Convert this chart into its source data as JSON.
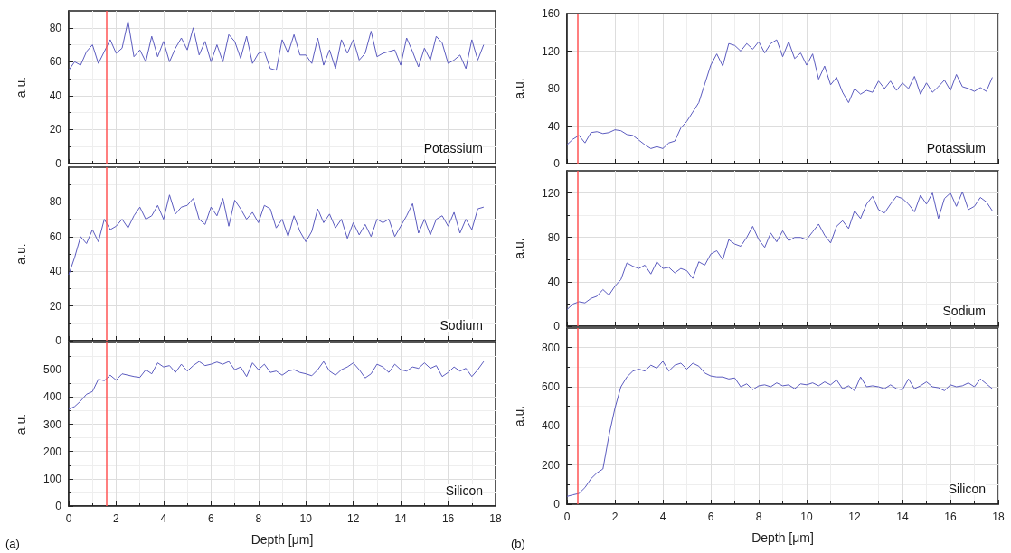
{
  "chart_data": [
    {
      "type": "line",
      "ylabel": "a.u.",
      "annotations": [
        "Potassium"
      ],
      "xlim": [
        0,
        18
      ],
      "xticks": [
        0,
        2,
        4,
        6,
        8,
        10,
        12,
        14,
        16,
        18
      ],
      "ylim": [
        0,
        90
      ],
      "yticks": [
        0,
        20,
        40,
        60,
        80
      ],
      "grid": true,
      "tick_labels": "y",
      "ref_lines": [
        {
          "axis": "x",
          "value": 1.6,
          "color": "#ff5555"
        }
      ],
      "x": [
        0,
        0.25,
        0.5,
        0.75,
        1,
        1.25,
        1.5,
        1.75,
        2,
        2.25,
        2.5,
        2.75,
        3,
        3.25,
        3.5,
        3.75,
        4,
        4.25,
        4.5,
        4.75,
        5,
        5.25,
        5.5,
        5.75,
        6,
        6.25,
        6.5,
        6.75,
        7,
        7.25,
        7.5,
        7.75,
        8,
        8.25,
        8.5,
        8.75,
        9,
        9.25,
        9.5,
        9.75,
        10,
        10.25,
        10.5,
        10.75,
        11,
        11.25,
        11.5,
        11.75,
        12,
        12.25,
        12.5,
        12.75,
        13,
        13.25,
        13.5,
        13.75,
        14,
        14.25,
        14.5,
        14.75,
        15,
        15.25,
        15.5,
        15.75,
        16,
        16.25,
        16.5,
        16.75,
        17,
        17.25,
        17.5
      ],
      "series": [
        {
          "color": "#5b5bbf",
          "values": [
            55,
            60,
            58,
            66,
            70,
            59,
            66,
            73,
            65,
            68,
            84,
            63,
            67,
            60,
            75,
            63,
            72,
            60,
            68,
            74,
            67,
            80,
            64,
            72,
            60,
            70,
            60,
            76,
            72,
            62,
            75,
            59,
            65,
            66,
            56,
            55,
            73,
            65,
            76,
            64,
            64,
            59,
            74,
            58,
            67,
            56,
            73,
            65,
            73,
            61,
            65,
            78,
            63,
            65,
            66,
            67,
            58,
            74,
            66,
            57,
            68,
            61,
            75,
            71,
            59,
            61,
            64,
            56,
            73,
            61,
            70
          ]
        }
      ]
    },
    {
      "type": "line",
      "ylabel": "a.u.",
      "annotations": [
        "Sodium"
      ],
      "xlim": [
        0,
        18
      ],
      "xticks": [
        0,
        2,
        4,
        6,
        8,
        10,
        12,
        14,
        16,
        18
      ],
      "ylim": [
        0,
        100
      ],
      "yticks": [
        0,
        20,
        40,
        60,
        80
      ],
      "grid": true,
      "tick_labels": "y",
      "ref_lines": [
        {
          "axis": "x",
          "value": 1.6,
          "color": "#ff5555"
        }
      ],
      "x": [
        0,
        0.25,
        0.5,
        0.75,
        1,
        1.25,
        1.5,
        1.75,
        2,
        2.25,
        2.5,
        2.75,
        3,
        3.25,
        3.5,
        3.75,
        4,
        4.25,
        4.5,
        4.75,
        5,
        5.25,
        5.5,
        5.75,
        6,
        6.25,
        6.5,
        6.75,
        7,
        7.25,
        7.5,
        7.75,
        8,
        8.25,
        8.5,
        8.75,
        9,
        9.25,
        9.5,
        9.75,
        10,
        10.25,
        10.5,
        10.75,
        11,
        11.25,
        11.5,
        11.75,
        12,
        12.25,
        12.5,
        12.75,
        13,
        13.25,
        13.5,
        13.75,
        14,
        14.25,
        14.5,
        14.75,
        15,
        15.25,
        15.5,
        15.75,
        16,
        16.25,
        16.5,
        16.75,
        17,
        17.25,
        17.5
      ],
      "series": [
        {
          "color": "#5b5bbf",
          "values": [
            38,
            48,
            60,
            56,
            64,
            57,
            70,
            64,
            66,
            70,
            65,
            72,
            77,
            70,
            72,
            78,
            70,
            84,
            73,
            77,
            78,
            82,
            70,
            67,
            77,
            72,
            82,
            66,
            81,
            76,
            70,
            74,
            68,
            78,
            76,
            65,
            70,
            60,
            72,
            63,
            57,
            63,
            76,
            68,
            73,
            65,
            70,
            59,
            68,
            61,
            67,
            60,
            70,
            68,
            70,
            60,
            66,
            72,
            79,
            62,
            70,
            61,
            70,
            72,
            66,
            74,
            62,
            70,
            64,
            76,
            77
          ]
        }
      ]
    },
    {
      "type": "line",
      "ylabel": "a.u.",
      "xlabel": "Depth [μm]",
      "annotations": [
        "Silicon",
        "(a)"
      ],
      "xlim": [
        0,
        18
      ],
      "xticks": [
        0,
        2,
        4,
        6,
        8,
        10,
        12,
        14,
        16,
        18
      ],
      "ylim": [
        0,
        600
      ],
      "yticks": [
        0,
        100,
        200,
        300,
        400,
        500
      ],
      "grid": true,
      "ref_lines": [
        {
          "axis": "x",
          "value": 1.6,
          "color": "#ff5555"
        }
      ],
      "x": [
        0,
        0.25,
        0.5,
        0.75,
        1,
        1.25,
        1.5,
        1.75,
        2,
        2.25,
        2.5,
        2.75,
        3,
        3.25,
        3.5,
        3.75,
        4,
        4.25,
        4.5,
        4.75,
        5,
        5.25,
        5.5,
        5.75,
        6,
        6.25,
        6.5,
        6.75,
        7,
        7.25,
        7.5,
        7.75,
        8,
        8.25,
        8.5,
        8.75,
        9,
        9.25,
        9.5,
        9.75,
        10,
        10.25,
        10.5,
        10.75,
        11,
        11.25,
        11.5,
        11.75,
        12,
        12.25,
        12.5,
        12.75,
        13,
        13.25,
        13.5,
        13.75,
        14,
        14.25,
        14.5,
        14.75,
        15,
        15.25,
        15.5,
        15.75,
        16,
        16.25,
        16.5,
        16.75,
        17,
        17.25,
        17.5
      ],
      "series": [
        {
          "color": "#5b5bbf",
          "values": [
            355,
            365,
            385,
            410,
            420,
            465,
            460,
            480,
            462,
            485,
            480,
            475,
            472,
            500,
            485,
            525,
            510,
            515,
            490,
            520,
            495,
            515,
            530,
            515,
            520,
            528,
            520,
            530,
            500,
            510,
            475,
            525,
            500,
            520,
            490,
            495,
            480,
            495,
            500,
            490,
            485,
            478,
            500,
            530,
            495,
            480,
            500,
            510,
            525,
            500,
            470,
            485,
            520,
            510,
            490,
            520,
            500,
            495,
            510,
            505,
            525,
            505,
            515,
            475,
            490,
            510,
            495,
            505,
            475,
            500,
            530
          ]
        }
      ]
    },
    {
      "type": "line",
      "ylabel": "a.u.",
      "annotations": [
        "Potassium"
      ],
      "xlim": [
        0,
        18
      ],
      "xticks": [
        0,
        2,
        4,
        6,
        8,
        10,
        12,
        14,
        16,
        18
      ],
      "ylim": [
        0,
        160
      ],
      "yticks": [
        0,
        40,
        80,
        120,
        160
      ],
      "grid": true,
      "tick_labels": "y",
      "ref_lines": [
        {
          "axis": "x",
          "value": 0.45,
          "color": "#ff5555"
        }
      ],
      "x": [
        0,
        0.25,
        0.5,
        0.75,
        1,
        1.25,
        1.5,
        1.75,
        2,
        2.25,
        2.5,
        2.75,
        3,
        3.25,
        3.5,
        3.75,
        4,
        4.25,
        4.5,
        4.75,
        5,
        5.25,
        5.5,
        5.75,
        6,
        6.25,
        6.5,
        6.75,
        7,
        7.25,
        7.5,
        7.75,
        8,
        8.25,
        8.5,
        8.75,
        9,
        9.25,
        9.5,
        9.75,
        10,
        10.25,
        10.5,
        10.75,
        11,
        11.25,
        11.5,
        11.75,
        12,
        12.25,
        12.5,
        12.75,
        13,
        13.25,
        13.5,
        13.75,
        14,
        14.25,
        14.5,
        14.75,
        15,
        15.25,
        15.5,
        15.75,
        16,
        16.25,
        16.5,
        16.75,
        17,
        17.25,
        17.5,
        17.75
      ],
      "series": [
        {
          "color": "#5b5bbf",
          "values": [
            20,
            26,
            30,
            22,
            33,
            34,
            32,
            33,
            36,
            35,
            31,
            30,
            25,
            20,
            16,
            18,
            16,
            22,
            24,
            38,
            45,
            55,
            65,
            85,
            105,
            117,
            104,
            128,
            126,
            120,
            128,
            122,
            130,
            118,
            128,
            132,
            114,
            130,
            112,
            118,
            105,
            117,
            90,
            104,
            84,
            92,
            76,
            65,
            80,
            74,
            78,
            76,
            88,
            80,
            88,
            78,
            86,
            80,
            93,
            74,
            86,
            76,
            82,
            89,
            78,
            95,
            82,
            80,
            77,
            81,
            77,
            92
          ]
        }
      ]
    },
    {
      "type": "line",
      "ylabel": "a.u.",
      "annotations": [
        "Sodium"
      ],
      "xlim": [
        0,
        18
      ],
      "xticks": [
        0,
        2,
        4,
        6,
        8,
        10,
        12,
        14,
        16,
        18
      ],
      "ylim": [
        0,
        140
      ],
      "yticks": [
        0,
        40,
        80,
        120
      ],
      "grid": true,
      "tick_labels": "y",
      "ref_lines": [
        {
          "axis": "x",
          "value": 0.45,
          "color": "#ff5555"
        }
      ],
      "x": [
        0,
        0.25,
        0.5,
        0.75,
        1,
        1.25,
        1.5,
        1.75,
        2,
        2.25,
        2.5,
        2.75,
        3,
        3.25,
        3.5,
        3.75,
        4,
        4.25,
        4.5,
        4.75,
        5,
        5.25,
        5.5,
        5.75,
        6,
        6.25,
        6.5,
        6.75,
        7,
        7.25,
        7.5,
        7.75,
        8,
        8.25,
        8.5,
        8.75,
        9,
        9.25,
        9.5,
        9.75,
        10,
        10.25,
        10.5,
        10.75,
        11,
        11.25,
        11.5,
        11.75,
        12,
        12.25,
        12.5,
        12.75,
        13,
        13.25,
        13.5,
        13.75,
        14,
        14.25,
        14.5,
        14.75,
        15,
        15.25,
        15.5,
        15.75,
        16,
        16.25,
        16.5,
        16.75,
        17,
        17.25,
        17.5,
        17.75
      ],
      "series": [
        {
          "color": "#5b5bbf",
          "values": [
            15,
            20,
            22,
            21,
            25,
            27,
            33,
            28,
            36,
            42,
            57,
            54,
            52,
            55,
            47,
            58,
            52,
            53,
            48,
            52,
            50,
            43,
            58,
            55,
            65,
            68,
            60,
            78,
            74,
            72,
            80,
            90,
            78,
            71,
            84,
            76,
            86,
            77,
            80,
            80,
            78,
            85,
            92,
            82,
            75,
            90,
            95,
            88,
            104,
            97,
            110,
            117,
            105,
            102,
            110,
            117,
            115,
            110,
            103,
            118,
            110,
            120,
            97,
            115,
            120,
            108,
            121,
            105,
            108,
            116,
            112,
            104
          ]
        }
      ]
    },
    {
      "type": "line",
      "ylabel": "a.u.",
      "xlabel": "Depth [μm]",
      "annotations": [
        "Silicon",
        "(b)"
      ],
      "xlim": [
        0,
        18
      ],
      "xticks": [
        0,
        2,
        4,
        6,
        8,
        10,
        12,
        14,
        16,
        18
      ],
      "ylim": [
        0,
        900
      ],
      "yticks": [
        0,
        200,
        400,
        600,
        800
      ],
      "grid": true,
      "ref_lines": [
        {
          "axis": "x",
          "value": 0.45,
          "color": "#ff5555"
        }
      ],
      "x": [
        0,
        0.25,
        0.5,
        0.75,
        1,
        1.25,
        1.5,
        1.75,
        2,
        2.25,
        2.5,
        2.75,
        3,
        3.25,
        3.5,
        3.75,
        4,
        4.25,
        4.5,
        4.75,
        5,
        5.25,
        5.5,
        5.75,
        6,
        6.25,
        6.5,
        6.75,
        7,
        7.25,
        7.5,
        7.75,
        8,
        8.25,
        8.5,
        8.75,
        9,
        9.25,
        9.5,
        9.75,
        10,
        10.25,
        10.5,
        10.75,
        11,
        11.25,
        11.5,
        11.75,
        12,
        12.25,
        12.5,
        12.75,
        13,
        13.25,
        13.5,
        13.75,
        14,
        14.25,
        14.5,
        14.75,
        15,
        15.25,
        15.5,
        15.75,
        16,
        16.25,
        16.5,
        16.75,
        17,
        17.25,
        17.5,
        17.75
      ],
      "series": [
        {
          "color": "#5b5bbf",
          "values": [
            40,
            48,
            55,
            85,
            130,
            160,
            180,
            350,
            490,
            600,
            650,
            680,
            690,
            680,
            710,
            695,
            730,
            680,
            710,
            720,
            690,
            720,
            705,
            670,
            655,
            650,
            650,
            640,
            645,
            600,
            615,
            585,
            605,
            610,
            600,
            620,
            605,
            610,
            590,
            615,
            610,
            620,
            605,
            625,
            610,
            635,
            590,
            605,
            580,
            650,
            600,
            605,
            600,
            590,
            610,
            590,
            585,
            640,
            590,
            605,
            625,
            600,
            595,
            580,
            610,
            600,
            605,
            620,
            600,
            640,
            615,
            590
          ]
        }
      ]
    }
  ]
}
